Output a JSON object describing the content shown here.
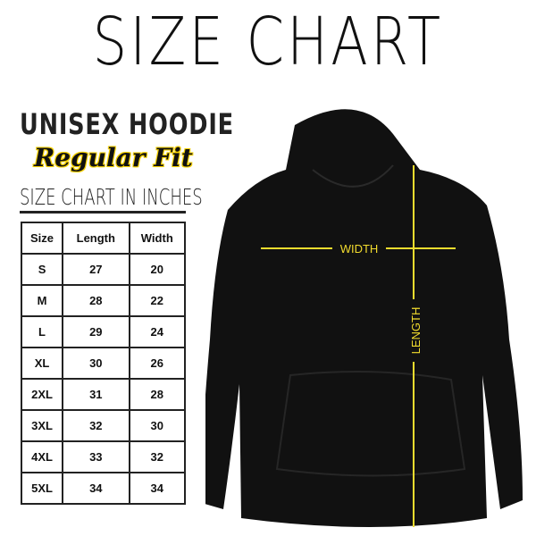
{
  "title": "SIZE CHART",
  "product": "UNISEX HOODIE",
  "fit": "Regular Fit",
  "chart_heading": "SIZE CHART IN INCHES",
  "table": {
    "headers": [
      "Size",
      "Length",
      "Width"
    ],
    "rows": [
      [
        "S",
        "27",
        "20"
      ],
      [
        "M",
        "28",
        "22"
      ],
      [
        "L",
        "29",
        "24"
      ],
      [
        "XL",
        "30",
        "26"
      ],
      [
        "2XL",
        "31",
        "28"
      ],
      [
        "3XL",
        "32",
        "30"
      ],
      [
        "4XL",
        "33",
        "32"
      ],
      [
        "5XL",
        "34",
        "34"
      ]
    ]
  },
  "diagram": {
    "width_label": "WIDTH",
    "length_label": "LENGTH"
  },
  "colors": {
    "measure_line": "#f2dc2e",
    "hoodie": "#111111",
    "accent": "#f5d000"
  }
}
